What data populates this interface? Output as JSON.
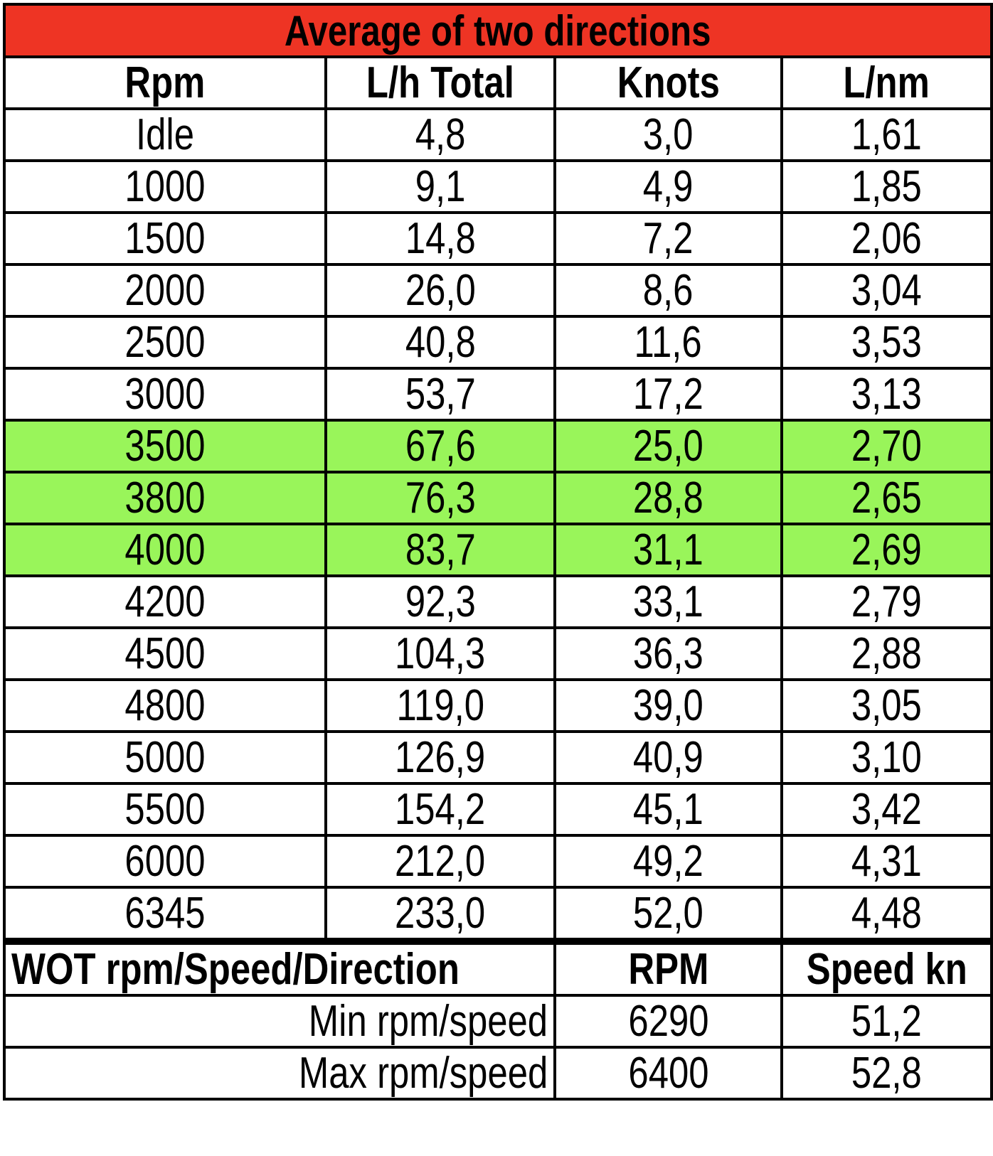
{
  "title": "Average of two directions",
  "headers": [
    "Rpm",
    "L/h Total",
    "Knots",
    "L/nm"
  ],
  "highlight_color": "#99f55a",
  "title_color": "#ee3424",
  "rows": [
    {
      "rpm": "Idle",
      "lh": "4,8",
      "knots": "3,0",
      "lnm": "1,61",
      "highlight": false
    },
    {
      "rpm": "1000",
      "lh": "9,1",
      "knots": "4,9",
      "lnm": "1,85",
      "highlight": false
    },
    {
      "rpm": "1500",
      "lh": "14,8",
      "knots": "7,2",
      "lnm": "2,06",
      "highlight": false
    },
    {
      "rpm": "2000",
      "lh": "26,0",
      "knots": "8,6",
      "lnm": "3,04",
      "highlight": false
    },
    {
      "rpm": "2500",
      "lh": "40,8",
      "knots": "11,6",
      "lnm": "3,53",
      "highlight": false
    },
    {
      "rpm": "3000",
      "lh": "53,7",
      "knots": "17,2",
      "lnm": "3,13",
      "highlight": false
    },
    {
      "rpm": "3500",
      "lh": "67,6",
      "knots": "25,0",
      "lnm": "2,70",
      "highlight": true
    },
    {
      "rpm": "3800",
      "lh": "76,3",
      "knots": "28,8",
      "lnm": "2,65",
      "highlight": true
    },
    {
      "rpm": "4000",
      "lh": "83,7",
      "knots": "31,1",
      "lnm": "2,69",
      "highlight": true
    },
    {
      "rpm": "4200",
      "lh": "92,3",
      "knots": "33,1",
      "lnm": "2,79",
      "highlight": false
    },
    {
      "rpm": "4500",
      "lh": "104,3",
      "knots": "36,3",
      "lnm": "2,88",
      "highlight": false
    },
    {
      "rpm": "4800",
      "lh": "119,0",
      "knots": "39,0",
      "lnm": "3,05",
      "highlight": false
    },
    {
      "rpm": "5000",
      "lh": "126,9",
      "knots": "40,9",
      "lnm": "3,10",
      "highlight": false
    },
    {
      "rpm": "5500",
      "lh": "154,2",
      "knots": "45,1",
      "lnm": "3,42",
      "highlight": false
    },
    {
      "rpm": "6000",
      "lh": "212,0",
      "knots": "49,2",
      "lnm": "4,31",
      "highlight": false
    },
    {
      "rpm": "6345",
      "lh": "233,0",
      "knots": "52,0",
      "lnm": "4,48",
      "highlight": false
    }
  ],
  "wot": {
    "header": [
      "WOT rpm/Speed/Direction",
      "RPM",
      "Speed kn"
    ],
    "rows": [
      {
        "label": "Min rpm/speed",
        "rpm": "6290",
        "speed": "51,2"
      },
      {
        "label": "Max rpm/speed",
        "rpm": "6400",
        "speed": "52,8"
      }
    ]
  }
}
